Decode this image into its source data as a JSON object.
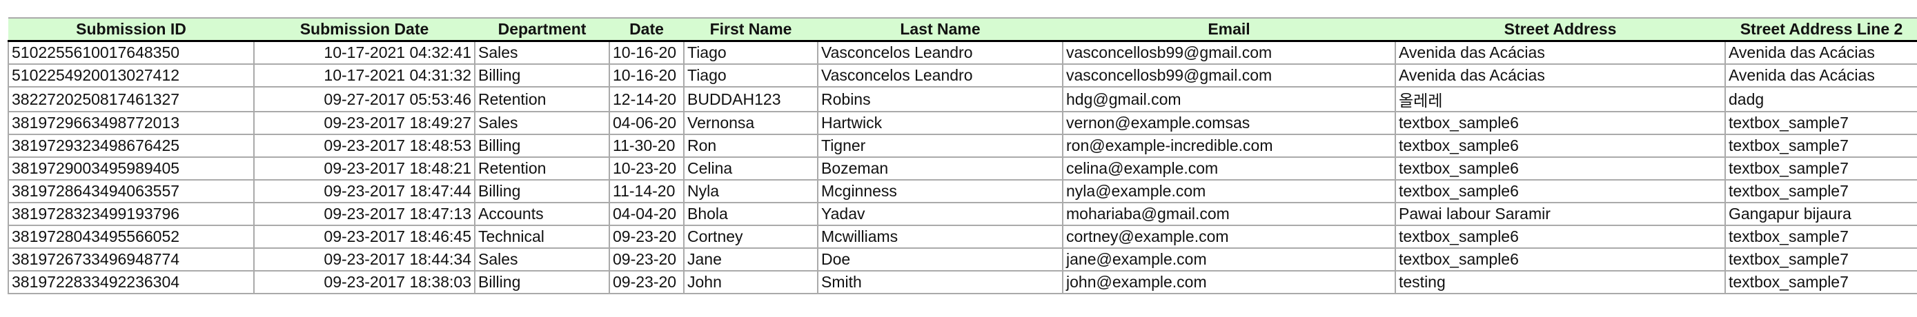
{
  "table": {
    "header_color": "#d6fbd1",
    "columns": [
      "Submission ID",
      "Submission Date",
      "Department",
      "Date",
      "First Name",
      "Last Name",
      "Email",
      "Street Address",
      "Street Address Line 2"
    ],
    "rows": [
      [
        "5102255610017648350",
        "10-17-2021 04:32:41",
        "Sales",
        "10-16-20",
        "Tiago",
        "Vasconcelos Leandro",
        "vasconcellosb99@gmail.com",
        "Avenida das Acácias",
        "Avenida das Acácias"
      ],
      [
        "5102254920013027412",
        "10-17-2021 04:31:32",
        "Billing",
        "10-16-20",
        "Tiago",
        "Vasconcelos Leandro",
        "vasconcellosb99@gmail.com",
        "Avenida das Acácias",
        "Avenida das Acácias"
      ],
      [
        "3822720250817461327",
        "09-27-2017 05:53:46",
        "Retention",
        "12-14-20",
        "BUDDAH123",
        "Robins",
        "hdg@gmail.com",
        "올레레",
        "dadg"
      ],
      [
        "3819729663498772013",
        "09-23-2017 18:49:27",
        "Sales",
        "04-06-20",
        "Vernonsa",
        "Hartwick",
        "vernon@example.comsas",
        "textbox_sample6",
        "textbox_sample7"
      ],
      [
        "3819729323498676425",
        "09-23-2017 18:48:53",
        "Billing",
        "11-30-20",
        "Ron",
        "Tigner",
        "ron@example-incredible.com",
        "textbox_sample6",
        "textbox_sample7"
      ],
      [
        "3819729003495989405",
        "09-23-2017 18:48:21",
        "Retention",
        "10-23-20",
        "Celina",
        "Bozeman",
        "celina@example.com",
        "textbox_sample6",
        "textbox_sample7"
      ],
      [
        "3819728643494063557",
        "09-23-2017 18:47:44",
        "Billing",
        "11-14-20",
        "Nyla",
        "Mcginness",
        "nyla@example.com",
        "textbox_sample6",
        "textbox_sample7"
      ],
      [
        "3819728323499193796",
        "09-23-2017 18:47:13",
        "Accounts",
        "04-04-20",
        "Bhola",
        "Yadav",
        "mohariaba@gmail.com",
        "Pawai labour Saramir",
        "Gangapur bijaura"
      ],
      [
        "3819728043495566052",
        "09-23-2017 18:46:45",
        "Technical",
        "09-23-20",
        "Cortney",
        "Mcwilliams",
        "cortney@example.com",
        "textbox_sample6",
        "textbox_sample7"
      ],
      [
        "3819726733496948774",
        "09-23-2017 18:44:34",
        "Sales",
        "09-23-20",
        "Jane",
        "Doe",
        "jane@example.com",
        "textbox_sample6",
        "textbox_sample7"
      ],
      [
        "3819722833492236304",
        "09-23-2017 18:38:03",
        "Billing",
        "09-23-20",
        "John",
        "Smith",
        "john@example.com",
        "testing",
        "textbox_sample7"
      ]
    ]
  }
}
